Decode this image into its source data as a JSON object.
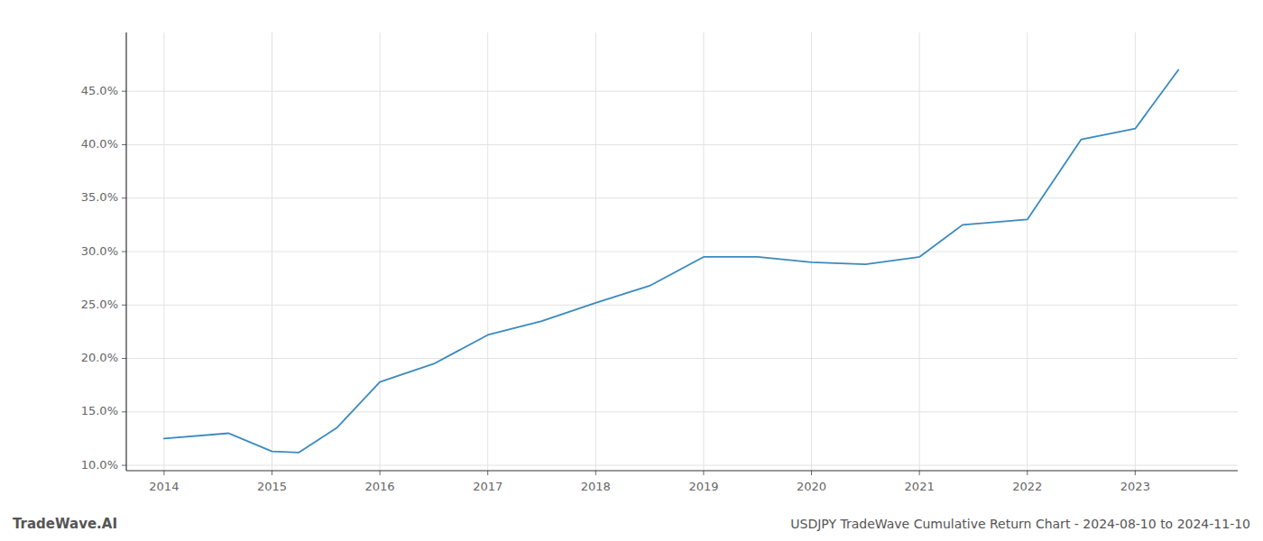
{
  "chart_data": {
    "type": "line",
    "title": "USDJPY TradeWave Cumulative Return Chart - 2024-08-10 to 2024-11-10",
    "annotations": [
      "TradeWave.AI"
    ],
    "x": [
      2014.0,
      2014.6,
      2015.0,
      2015.25,
      2015.6,
      2016.0,
      2016.5,
      2017.0,
      2017.5,
      2018.0,
      2018.5,
      2019.0,
      2019.5,
      2020.0,
      2020.5,
      2021.0,
      2021.4,
      2022.0,
      2022.5,
      2023.0,
      2023.4
    ],
    "values": [
      12.5,
      13.0,
      11.3,
      11.2,
      13.5,
      17.8,
      19.5,
      22.2,
      23.5,
      25.2,
      26.8,
      29.5,
      29.5,
      29.0,
      28.8,
      29.5,
      32.5,
      33.0,
      40.5,
      41.5,
      47.0
    ],
    "color": "#3a8abf",
    "xlim": [
      2013.65,
      2023.95
    ],
    "ylim": [
      9.5,
      50.5
    ],
    "xticks": [
      2014,
      2015,
      2016,
      2017,
      2018,
      2019,
      2020,
      2021,
      2022,
      2023
    ],
    "yticks": [
      {
        "value": 10.0,
        "label": "10.0%"
      },
      {
        "value": 15.0,
        "label": "15.0%"
      },
      {
        "value": 20.0,
        "label": "20.0%"
      },
      {
        "value": 25.0,
        "label": "25.0%"
      },
      {
        "value": 30.0,
        "label": "30.0%"
      },
      {
        "value": 35.0,
        "label": "35.0%"
      },
      {
        "value": 40.0,
        "label": "40.0%"
      },
      {
        "value": 45.0,
        "label": "45.0%"
      }
    ],
    "grid": true
  }
}
